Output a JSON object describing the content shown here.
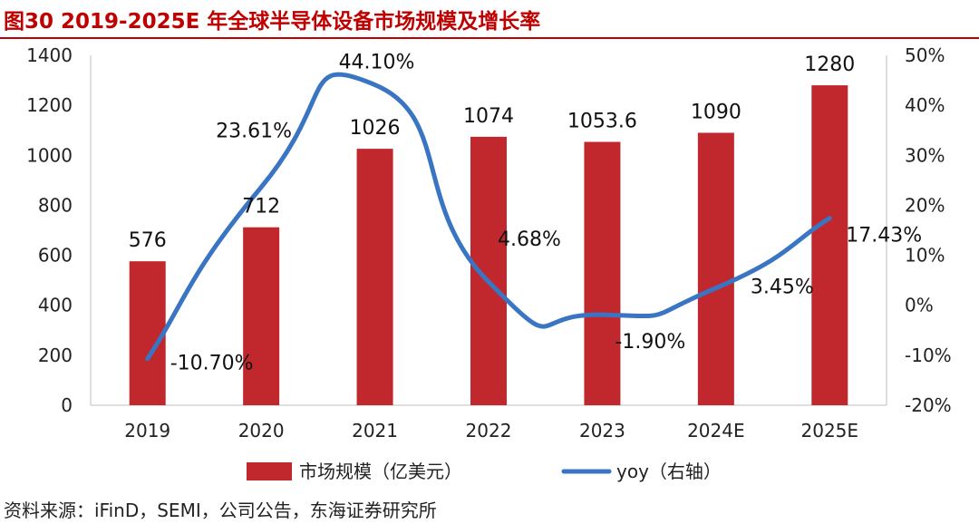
{
  "figure": {
    "title": "图30  2019-2025E 年全球半导体设备市场规模及增长率",
    "source": "资料来源：iFinD，SEMI，公司公告，东海证券研究所"
  },
  "chart_data": {
    "type": "bar",
    "categories": [
      "2019",
      "2020",
      "2021",
      "2022",
      "2023",
      "2024E",
      "2025E"
    ],
    "series": [
      {
        "name": "市场规模（亿美元）",
        "type": "bar",
        "axis": "left",
        "color": "#c0282d",
        "values": [
          576,
          712,
          1026,
          1074,
          1053.6,
          1090,
          1280
        ],
        "labels": [
          "576",
          "712",
          "1026",
          "1074",
          "1053.6",
          "1090",
          "1280"
        ]
      },
      {
        "name": "yoy（右轴）",
        "type": "line",
        "axis": "right",
        "color": "#3a75c4",
        "values": [
          -10.7,
          23.61,
          44.1,
          4.68,
          -1.9,
          3.45,
          17.43
        ],
        "labels": [
          "-10.70%",
          "23.61%",
          "44.10%",
          "4.68%",
          "-1.90%",
          "3.45%",
          "17.43%"
        ]
      }
    ],
    "y_left": {
      "ylim": [
        0,
        1400
      ],
      "ticks": [
        "0",
        "200",
        "400",
        "600",
        "800",
        "1000",
        "1200",
        "1400"
      ]
    },
    "y_right": {
      "ylim": [
        -20,
        50
      ],
      "ticks": [
        "-20%",
        "-10%",
        "0%",
        "10%",
        "20%",
        "30%",
        "40%",
        "50%"
      ]
    },
    "legend_position": "bottom",
    "grid": false
  }
}
